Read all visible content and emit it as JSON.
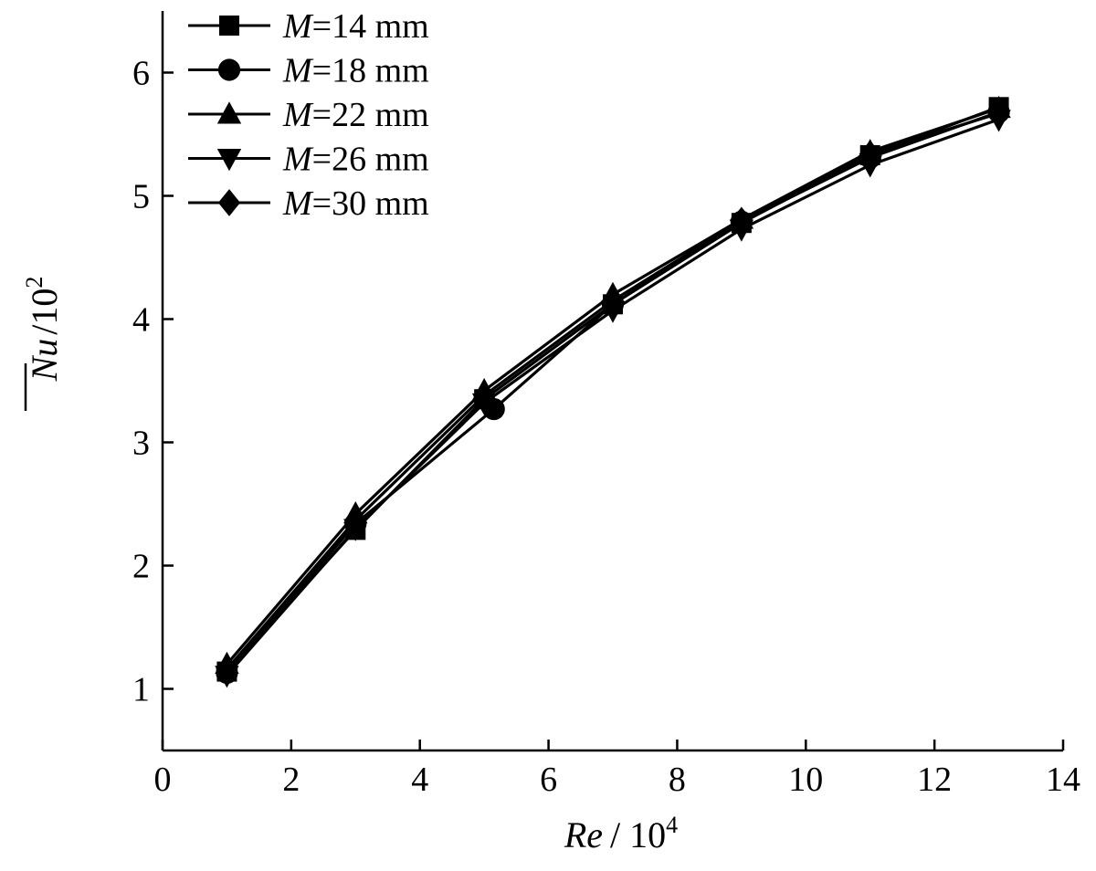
{
  "chart_data": {
    "type": "line",
    "xlabel": "Re",
    "xlabel_unit": "/ 10",
    "xlabel_exp": "4",
    "ylabel": "Nu",
    "ylabel_unit": "/10",
    "ylabel_exp": "2",
    "xlim": [
      0,
      14
    ],
    "ylim": [
      0.5,
      6.5
    ],
    "xticks": [
      0,
      2,
      4,
      6,
      8,
      10,
      12,
      14
    ],
    "yticks": [
      1,
      2,
      3,
      4,
      5,
      6
    ],
    "grid": false,
    "legend_position": "top-left",
    "series": [
      {
        "name_var": "M",
        "name_rest": "=14 mm",
        "marker": "square",
        "x": [
          1,
          3,
          5,
          7,
          9,
          11,
          13
        ],
        "y": [
          1.14,
          2.29,
          3.35,
          4.12,
          4.78,
          5.33,
          5.72
        ]
      },
      {
        "name_var": "M",
        "name_rest": "=18 mm",
        "marker": "circle",
        "x": [
          1,
          3,
          5.15,
          7,
          9,
          11,
          13
        ],
        "y": [
          1.13,
          2.34,
          3.27,
          4.12,
          4.79,
          5.31,
          5.68
        ]
      },
      {
        "name_var": "M",
        "name_rest": "=22 mm",
        "marker": "triangle-up",
        "x": [
          1,
          3,
          5,
          7,
          9,
          11,
          13
        ],
        "y": [
          1.2,
          2.42,
          3.42,
          4.2,
          4.81,
          5.36,
          5.71
        ]
      },
      {
        "name_var": "M",
        "name_rest": "=26 mm",
        "marker": "triangle-down",
        "x": [
          1,
          3,
          5,
          7,
          9,
          11,
          13
        ],
        "y": [
          1.11,
          2.3,
          3.32,
          4.07,
          4.73,
          5.25,
          5.62
        ]
      },
      {
        "name_var": "M",
        "name_rest": "=30 mm",
        "marker": "diamond",
        "x": [
          1,
          3,
          5,
          7,
          9,
          11,
          13
        ],
        "y": [
          1.16,
          2.37,
          3.38,
          4.15,
          4.8,
          5.34,
          5.67
        ]
      }
    ]
  }
}
